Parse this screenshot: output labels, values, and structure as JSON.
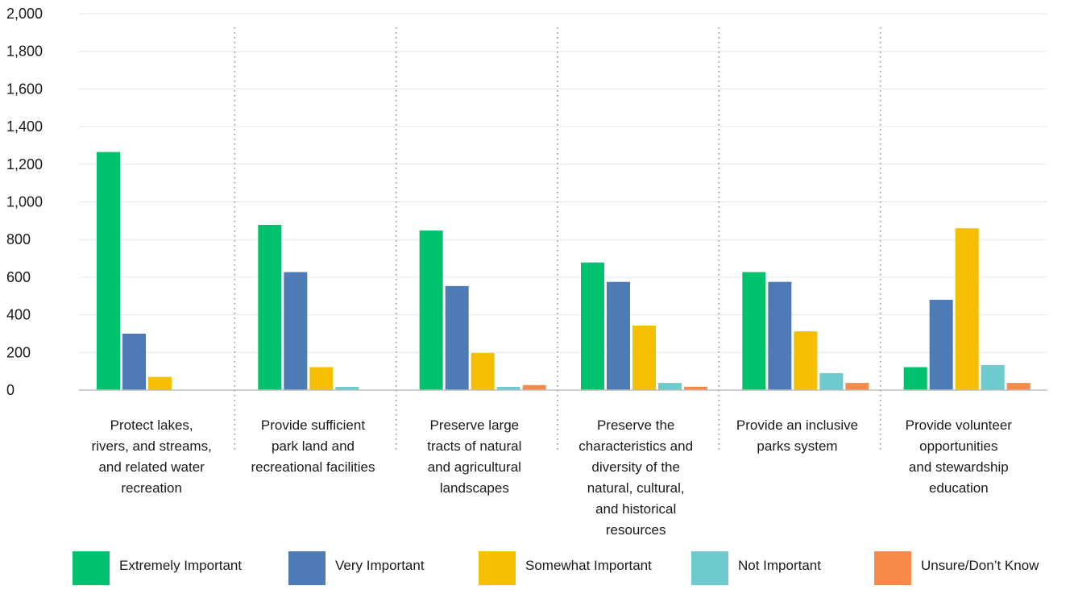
{
  "chart_data": {
    "type": "bar",
    "title": "",
    "xlabel": "",
    "ylabel": "",
    "ylim": [
      0,
      2000
    ],
    "y_ticks": [
      "0",
      "200",
      "400",
      "600",
      "800",
      "1,000",
      "1,200",
      "1,400",
      "1,600",
      "1,800",
      "2,000"
    ],
    "y_tick_values": [
      0,
      200,
      400,
      600,
      800,
      1000,
      1200,
      1400,
      1600,
      1800,
      2000
    ],
    "grid": true,
    "legend_position": "bottom",
    "categories": [
      [
        "Protect lakes,",
        "rivers, and streams,",
        "and related water",
        "recreation"
      ],
      [
        "Provide sufficient",
        "park land and",
        "recreational facilities"
      ],
      [
        "Preserve large",
        "tracts of natural",
        "and agricultural",
        "landscapes"
      ],
      [
        "Preserve the",
        "characteristics and",
        "diversity of the",
        "natural, cultural,",
        "and historical",
        "resources"
      ],
      [
        "Provide an inclusive",
        "parks system"
      ],
      [
        "Provide volunteer",
        "opportunities",
        "and stewardship",
        "education"
      ]
    ],
    "series": [
      {
        "name": "Extremely Important",
        "color": "#00c16e",
        "values": [
          1265,
          878,
          848,
          678,
          627,
          122
        ]
      },
      {
        "name": "Very Important",
        "color": "#4e7ab5",
        "values": [
          300,
          627,
          553,
          575,
          575,
          480
        ]
      },
      {
        "name": "Somewhat Important",
        "color": "#f5be00",
        "values": [
          70,
          122,
          197,
          343,
          312,
          860
        ]
      },
      {
        "name": "Not Important",
        "color": "#6ecacc",
        "values": [
          0,
          17,
          17,
          38,
          90,
          133
        ]
      },
      {
        "name": "Unsure/Don’t Know",
        "color": "#f7894a",
        "values": [
          0,
          0,
          27,
          18,
          38,
          38
        ]
      }
    ]
  }
}
